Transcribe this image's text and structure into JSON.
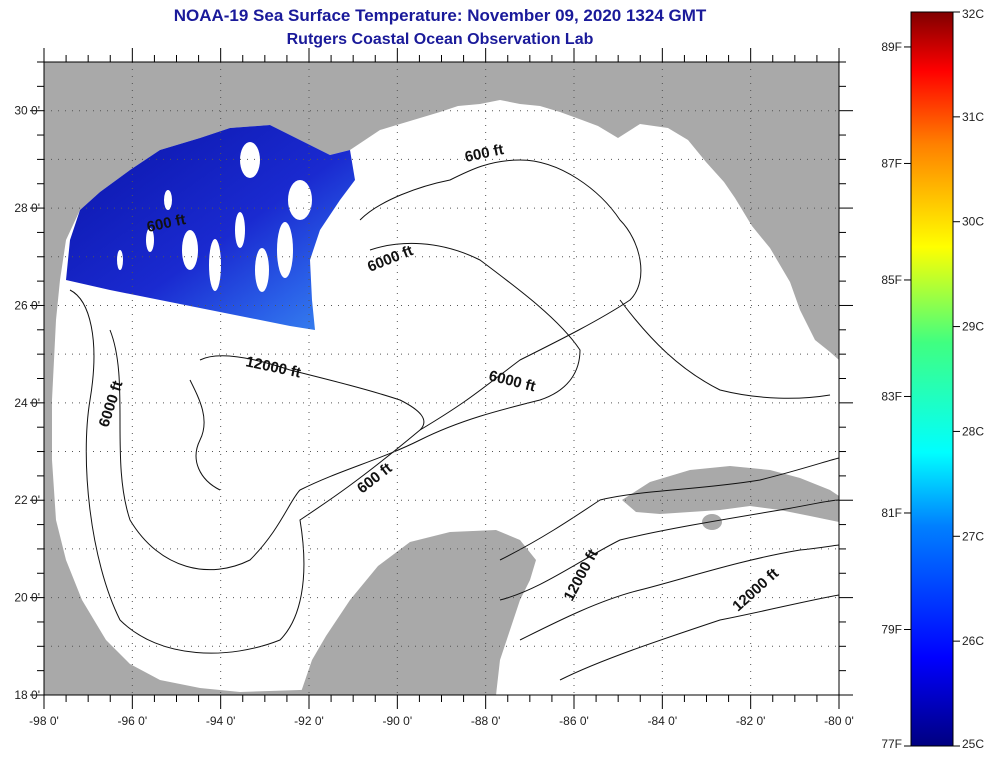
{
  "title": "NOAA-19 Sea Surface Temperature:  November 09, 2020 1324 GMT",
  "subtitle": "Rutgers Coastal Ocean Observation Lab",
  "map": {
    "lon_range": [
      -98,
      -80
    ],
    "lat_range": [
      18,
      31
    ],
    "lon_ticks": [
      "-98 0'",
      "-96 0'",
      "-94 0'",
      "-92 0'",
      "-90 0'",
      "-88 0'",
      "-86 0'",
      "-84 0'",
      "-82 0'",
      "-80 0'"
    ],
    "lat_ticks": [
      "18 0'",
      "20 0'",
      "22 0'",
      "24 0'",
      "26 0'",
      "28 0'",
      "30 0'"
    ],
    "contour_labels": [
      {
        "text": "600 ft"
      },
      {
        "text": "6000 ft"
      },
      {
        "text": "12000 ft"
      },
      {
        "text": "6000 ft"
      },
      {
        "text": "6000 ft"
      },
      {
        "text": "600 ft"
      },
      {
        "text": "600 ft"
      },
      {
        "text": "12000 ft"
      },
      {
        "text": "12000 ft"
      }
    ],
    "land_color": "#a9a9a9",
    "ocean_color": "#ffffff",
    "sst_color": "#1a22c8"
  },
  "colorbar": {
    "celsius_labels": [
      "32C",
      "31C",
      "30C",
      "29C",
      "28C",
      "27C",
      "26C",
      "25C"
    ],
    "fahrenheit_labels": [
      "89F",
      "87F",
      "85F",
      "83F",
      "81F",
      "79F",
      "77F"
    ]
  }
}
